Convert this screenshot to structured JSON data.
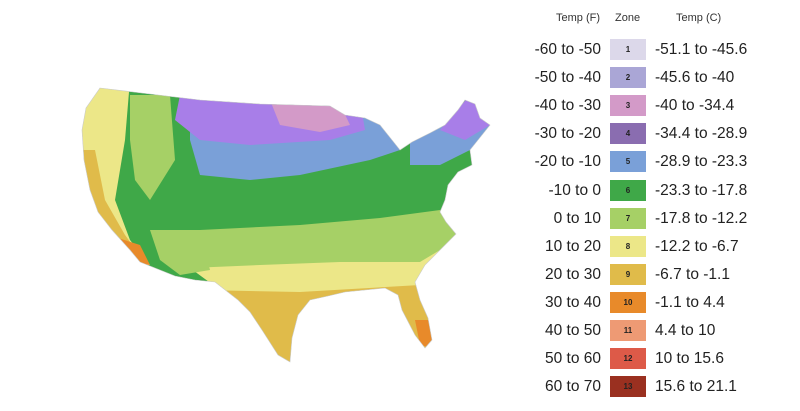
{
  "legend": {
    "header_f": "Temp (F)",
    "header_zone": "Zone",
    "header_c": "Temp (C)",
    "rows": [
      {
        "f": "-60 to -50",
        "zone": "1",
        "c": "-51.1 to -45.6",
        "color": "#dcd8ea"
      },
      {
        "f": "-50 to -40",
        "zone": "2",
        "c": "-45.6 to -40",
        "color": "#aaa6d6"
      },
      {
        "f": "-40 to -30",
        "zone": "3",
        "c": "-40 to -34.4",
        "color": "#d39ac8"
      },
      {
        "f": "-30 to -20",
        "zone": "4",
        "c": "-34.4 to -28.9",
        "color": "#8a6db0"
      },
      {
        "f": "-20 to -10",
        "zone": "5",
        "c": "-28.9 to -23.3",
        "color": "#7aa0d8"
      },
      {
        "f": "-10 to 0",
        "zone": "6",
        "c": "-23.3 to -17.8",
        "color": "#3fa848"
      },
      {
        "f": "0 to 10",
        "zone": "7",
        "c": "-17.8 to -12.2",
        "color": "#a6d066"
      },
      {
        "f": "10 to 20",
        "zone": "8",
        "c": "-12.2 to -6.7",
        "color": "#ece788"
      },
      {
        "f": "20 to 30",
        "zone": "9",
        "c": "-6.7 to -1.1",
        "color": "#e0bb4a"
      },
      {
        "f": "30 to 40",
        "zone": "10",
        "c": "-1.1 to 4.4",
        "color": "#e88a2a"
      },
      {
        "f": "40 to 50",
        "zone": "11",
        "c": "4.4 to 10",
        "color": "#ee9a74"
      },
      {
        "f": "50 to 60",
        "zone": "12",
        "c": "10 to 15.6",
        "color": "#dd5a48"
      },
      {
        "f": "60 to 70",
        "zone": "13",
        "c": "15.6 to 21.1",
        "color": "#9a3020"
      }
    ]
  }
}
